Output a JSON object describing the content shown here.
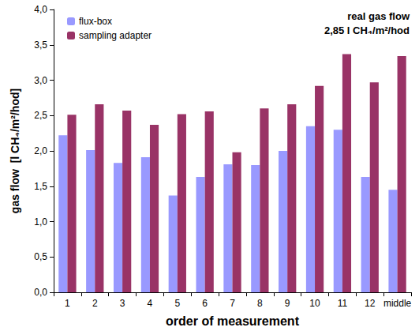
{
  "chart_data": {
    "type": "bar",
    "x_label": "order of measurement",
    "y_label": "gas flow  [l CH₄/m²/hod]",
    "annotations": [
      "real gas flow",
      "2,85 l CH₄/m²/hod"
    ],
    "categories": [
      "1",
      "2",
      "3",
      "4",
      "5",
      "6",
      "7",
      "8",
      "9",
      "10",
      "11",
      "12",
      "middle"
    ],
    "series": [
      {
        "name": "flux-box",
        "color": "#9999ff",
        "values": [
          2.22,
          2.01,
          1.83,
          1.91,
          1.37,
          1.63,
          1.81,
          1.8,
          2.0,
          2.35,
          2.3,
          1.63,
          1.45
        ]
      },
      {
        "name": "sampling adapter",
        "color": "#993366",
        "values": [
          2.51,
          2.66,
          2.57,
          2.37,
          2.52,
          2.56,
          1.98,
          2.6,
          2.66,
          2.92,
          3.37,
          2.97,
          3.34
        ]
      }
    ],
    "ylim": [
      0,
      4
    ],
    "yticks": [
      {
        "value": 0,
        "label": "0,0"
      },
      {
        "value": 0.5,
        "label": "0,5"
      },
      {
        "value": 1,
        "label": "1,0"
      },
      {
        "value": 1.5,
        "label": "1,5"
      },
      {
        "value": 2,
        "label": "2,0"
      },
      {
        "value": 2.5,
        "label": "2,5"
      },
      {
        "value": 3,
        "label": "3,0"
      },
      {
        "value": 3.5,
        "label": "3,5"
      },
      {
        "value": 4,
        "label": "4,0"
      }
    ],
    "grid": false,
    "legend": "top-left"
  }
}
